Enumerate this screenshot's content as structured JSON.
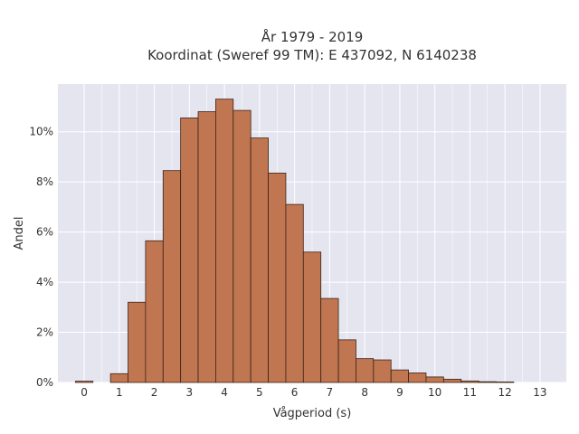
{
  "chart_data": {
    "type": "bar",
    "title_line1": "År 1979 - 2019",
    "title_line2": "Koordinat (Sweref 99 TM): E 437092, N 6140238",
    "xlabel": "Vågperiod (s)",
    "ylabel": "Andel",
    "bin_width": 0.5,
    "bins": [
      {
        "x": 0.0,
        "value": 0.05
      },
      {
        "x": 0.5,
        "value": 0.0
      },
      {
        "x": 1.0,
        "value": 0.35
      },
      {
        "x": 1.5,
        "value": 3.2
      },
      {
        "x": 2.0,
        "value": 5.65
      },
      {
        "x": 2.5,
        "value": 8.45
      },
      {
        "x": 3.0,
        "value": 10.55
      },
      {
        "x": 3.5,
        "value": 10.8
      },
      {
        "x": 4.0,
        "value": 11.3
      },
      {
        "x": 4.5,
        "value": 10.85
      },
      {
        "x": 5.0,
        "value": 9.75
      },
      {
        "x": 5.5,
        "value": 8.35
      },
      {
        "x": 6.0,
        "value": 7.1
      },
      {
        "x": 6.5,
        "value": 5.2
      },
      {
        "x": 7.0,
        "value": 3.35
      },
      {
        "x": 7.5,
        "value": 1.7
      },
      {
        "x": 8.0,
        "value": 0.95
      },
      {
        "x": 8.5,
        "value": 0.9
      },
      {
        "x": 9.0,
        "value": 0.5
      },
      {
        "x": 9.5,
        "value": 0.38
      },
      {
        "x": 10.0,
        "value": 0.22
      },
      {
        "x": 10.5,
        "value": 0.13
      },
      {
        "x": 11.0,
        "value": 0.06
      },
      {
        "x": 11.5,
        "value": 0.03
      },
      {
        "x": 12.0,
        "value": 0.02
      },
      {
        "x": 12.5,
        "value": 0.0
      },
      {
        "x": 13.0,
        "value": 0.0
      }
    ],
    "x_ticks": [
      "0",
      "1",
      "2",
      "3",
      "4",
      "5",
      "6",
      "7",
      "8",
      "9",
      "10",
      "11",
      "12",
      "13"
    ],
    "y_ticks": [
      "0%",
      "2%",
      "4%",
      "6%",
      "8%",
      "10%"
    ],
    "xlim": [
      -0.75,
      13.75
    ],
    "ylim": [
      0,
      11.9
    ],
    "grid": true,
    "colors": {
      "bar_fill": "#c07650",
      "bar_stroke": "#3b2418",
      "plot_background": "#e5e5f0",
      "grid": "#ffffff"
    }
  }
}
